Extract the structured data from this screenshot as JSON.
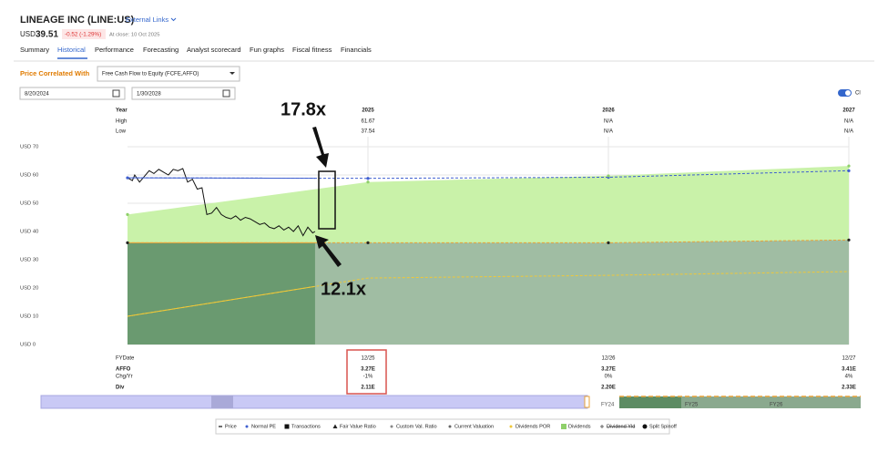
{
  "header": {
    "company": "LINEAGE INC (LINE:US)",
    "external_links": "External Links",
    "currency": "USD",
    "price": "39.51",
    "change": "-0.52 (-1.29%)",
    "close_note": "At close: 10 Oct 2025"
  },
  "tabs": [
    "Summary",
    "Historical",
    "Performance",
    "Forecasting",
    "Analyst scorecard",
    "Fun graphs",
    "Fiscal fitness",
    "Financials"
  ],
  "controls": {
    "correlated_label": "Price Correlated With",
    "correlated_value": "Free Cash Flow to Equity (FCFE,AFFO)",
    "start_date": "8/20/2024",
    "end_date": "1/30/2028",
    "toggle_label": "Cl"
  },
  "year_table": {
    "labels": [
      "Year",
      "High",
      "Low"
    ],
    "high": [
      "61.67",
      "N/A",
      "N/A"
    ],
    "low": [
      "37.54",
      "N/A",
      "N/A"
    ]
  },
  "fy_table": {
    "labels": [
      "FYDate",
      "AFFO",
      "Chg/Yr",
      "Div"
    ],
    "columns": [
      [
        "12/25",
        "3.27E",
        "-1%",
        "2.11E"
      ],
      [
        "12/26",
        "3.27E",
        "0%",
        "2.20E"
      ],
      [
        "12/27",
        "3.41E",
        "4%",
        "2.33E"
      ]
    ]
  },
  "navigator": {
    "labels": [
      "FY24",
      "FY25",
      "FY26"
    ]
  },
  "chart_data": {
    "type": "line",
    "annotations": [
      {
        "text": "17.8x"
      },
      {
        "text": "12.1x"
      }
    ],
    "xlim": [
      2024,
      2027
    ],
    "xticks": [
      2025,
      2026,
      2027
    ],
    "ylim": [
      0,
      70
    ],
    "yticks": [
      {
        "value": 0,
        "label": "USD 0"
      },
      {
        "value": 10,
        "label": "USD 10"
      },
      {
        "value": 20,
        "label": "USD 20"
      },
      {
        "value": 30,
        "label": "USD 30"
      },
      {
        "value": 40,
        "label": "USD 40"
      },
      {
        "value": 50,
        "label": "USD 50"
      },
      {
        "value": 60,
        "label": "USD 60"
      },
      {
        "value": 70,
        "label": "USD 70"
      }
    ],
    "grid": true,
    "projection_start": 2024.78,
    "series": [
      {
        "name": "Price",
        "color": "#111111",
        "kind": "line",
        "symbol": "dash",
        "x": [
          2024,
          2024.02,
          2024.03,
          2024.05,
          2024.07,
          2024.09,
          2024.11,
          2024.13,
          2024.15,
          2024.17,
          2024.19,
          2024.21,
          2024.23,
          2024.25,
          2024.27,
          2024.29,
          2024.31,
          2024.33,
          2024.35,
          2024.37,
          2024.39,
          2024.41,
          2024.43,
          2024.45,
          2024.47,
          2024.49,
          2024.51,
          2024.53,
          2024.55,
          2024.57,
          2024.59,
          2024.61,
          2024.63,
          2024.65,
          2024.67,
          2024.69,
          2024.71,
          2024.73,
          2024.75,
          2024.77,
          2024.78
        ],
        "values": [
          59,
          58,
          60,
          57.5,
          59.5,
          61.5,
          60.5,
          62,
          61,
          60,
          62,
          61.5,
          62.3,
          57.5,
          58.5,
          55,
          55.5,
          46,
          46.5,
          48.5,
          46,
          45,
          44.5,
          45.5,
          44,
          45,
          44.5,
          43.5,
          42.5,
          43,
          41.5,
          41,
          42,
          40.5,
          41.5,
          40,
          42,
          38.5,
          41.5,
          39.5,
          40
        ]
      },
      {
        "name": "Normal PE",
        "color": "#3f5fd0",
        "kind": "line",
        "symbol": "dot",
        "markers": true,
        "x": [
          2024,
          2025,
          2026,
          2027
        ],
        "values": [
          59,
          58.8,
          59.2,
          61.5
        ]
      },
      {
        "name": "Transactions",
        "color": "#111111",
        "symbol": "square"
      },
      {
        "name": "Fair Value Ratio",
        "color": "#e8a33a",
        "marker_color": "#222222",
        "kind": "line",
        "symbol": "triangle",
        "markers": true,
        "fill": "#6a9a70",
        "projected_fill": "#a0bda3",
        "x": [
          2024,
          2025,
          2026,
          2027
        ],
        "values": [
          36,
          36,
          36,
          37
        ]
      },
      {
        "name": "Custom Val. Ratio",
        "color": "#888888",
        "symbol": "dot"
      },
      {
        "name": "Current Valuation",
        "color": "#666666",
        "symbol": "dot"
      },
      {
        "name": "Dividends POR",
        "color": "#f0c838",
        "kind": "line",
        "symbol": "dot",
        "markers": false,
        "x": [
          2024,
          2025,
          2026,
          2027
        ],
        "values": [
          10,
          23.5,
          24.5,
          25.8
        ]
      },
      {
        "name": "Dividends",
        "color": "#c9f2a9",
        "kind": "area",
        "symbol": "square",
        "markers": true,
        "marker_color": "#8fd06a",
        "x": [
          2024,
          2025,
          2026,
          2027
        ],
        "values": [
          46,
          57.5,
          59.7,
          63.2
        ]
      },
      {
        "name": "Dividend Yld",
        "color": "#666666",
        "symbol": "plus",
        "visible": false
      },
      {
        "name": "Split Spinoff",
        "color": "#111111",
        "symbol": "circle"
      }
    ]
  }
}
